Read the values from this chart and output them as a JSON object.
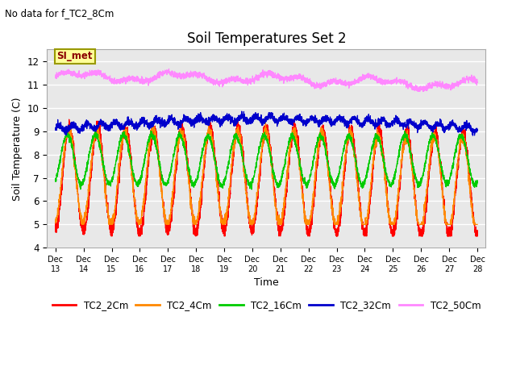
{
  "title": "Soil Temperatures Set 2",
  "subtitle": "No data for f_TC2_8Cm",
  "xlabel": "Time",
  "ylabel": "Soil Temperature (C)",
  "ylim": [
    4.0,
    12.5
  ],
  "yticks": [
    4.0,
    5.0,
    6.0,
    7.0,
    8.0,
    9.0,
    10.0,
    11.0,
    12.0
  ],
  "date_start": 13,
  "date_end": 28,
  "num_points": 3600,
  "bg_color": "#e8e8e8",
  "series": {
    "TC2_2Cm": {
      "color": "#ff0000"
    },
    "TC2_4Cm": {
      "color": "#ff8800"
    },
    "TC2_16Cm": {
      "color": "#00cc00"
    },
    "TC2_32Cm": {
      "color": "#0000cc"
    },
    "TC2_50Cm": {
      "color": "#ff88ff"
    }
  },
  "legend_entries": [
    "TC2_2Cm",
    "TC2_4Cm",
    "TC2_16Cm",
    "TC2_32Cm",
    "TC2_50Cm"
  ],
  "legend_colors": [
    "#ff0000",
    "#ff8800",
    "#00cc00",
    "#0000cc",
    "#ff88ff"
  ],
  "annotation_text": "SI_met"
}
